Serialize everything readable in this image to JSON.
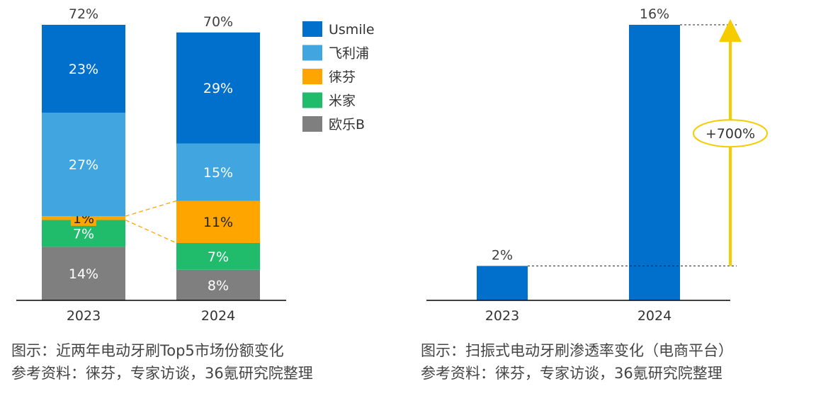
{
  "chart_data": [
    {
      "type": "bar",
      "stacked": true,
      "categories": [
        "2023",
        "2024"
      ],
      "totals": [
        "72%",
        "70%"
      ],
      "series": [
        {
          "name": "欧乐B",
          "values": [
            14,
            8
          ],
          "labels": [
            "14%",
            "8%"
          ]
        },
        {
          "name": "米家",
          "values": [
            7,
            7
          ],
          "labels": [
            "7%",
            "7%"
          ]
        },
        {
          "name": "徕芬",
          "values": [
            1,
            11
          ],
          "labels": [
            "1%",
            "11%"
          ]
        },
        {
          "name": "飞利浦",
          "values": [
            27,
            15
          ],
          "labels": [
            "27%",
            "15%"
          ]
        },
        {
          "name": "Usmile",
          "values": [
            23,
            29
          ],
          "labels": [
            "23%",
            "29%"
          ]
        }
      ],
      "legend_order": [
        "Usmile",
        "飞利浦",
        "徕芬",
        "米家",
        "欧乐B"
      ],
      "legend_position": "right",
      "ylim": [
        0,
        72
      ],
      "colors": {
        "Usmile": "#0070cc",
        "飞利浦": "#41a5df",
        "徕芬": "#ffa500",
        "米家": "#21bb6c",
        "欧乐B": "#7f7f7f"
      },
      "highlight_connector": "徕芬 segment 2023 → 2024, dashed orange",
      "caption": [
        "图示：近两年电动牙刷Top5市场份额变化",
        "参考资料：徕芬，专家访谈，36氪研究院整理"
      ]
    },
    {
      "type": "bar",
      "categories": [
        "2023",
        "2024"
      ],
      "values": [
        2,
        16
      ],
      "labels": [
        "2%",
        "16%"
      ],
      "ylim": [
        0,
        16
      ],
      "color": "#0070cc",
      "annotation": {
        "text": "+700%",
        "arrow_color": "#f5cc00"
      },
      "caption": [
        "图示：扫振式电动牙刷渗透率变化（电商平台）",
        "参考资料：徕芬，专家访谈，36氪研究院整理"
      ]
    }
  ]
}
